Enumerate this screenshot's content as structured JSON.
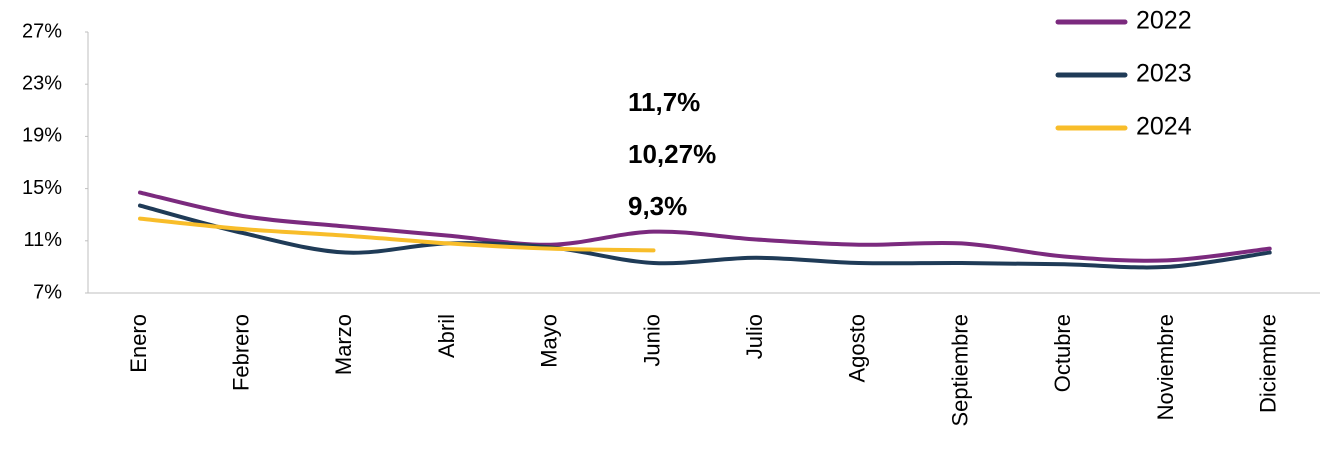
{
  "chart_data": {
    "type": "line",
    "categories": [
      "Enero",
      "Febrero",
      "Marzo",
      "Abril",
      "Mayo",
      "Junio",
      "Julio",
      "Agosto",
      "Septiembre",
      "Octubre",
      "Noviembre",
      "Diciembre"
    ],
    "series": [
      {
        "name": "2022",
        "color": "#7b2a7e",
        "values": [
          14.7,
          12.9,
          12.1,
          11.4,
          10.7,
          11.7,
          11.1,
          10.7,
          10.8,
          9.8,
          9.5,
          10.4
        ]
      },
      {
        "name": "2023",
        "color": "#1f3b57",
        "values": [
          13.7,
          11.6,
          10.1,
          10.8,
          10.5,
          9.3,
          9.7,
          9.3,
          9.3,
          9.2,
          9.0,
          10.1
        ]
      },
      {
        "name": "2024",
        "color": "#f8bd2a",
        "values": [
          12.7,
          11.9,
          11.4,
          10.8,
          10.4,
          10.27,
          null,
          null,
          null,
          null,
          null,
          null
        ]
      }
    ],
    "ylim": [
      7,
      27
    ],
    "yticks": [
      {
        "value": 7,
        "label": "7%"
      },
      {
        "value": 11,
        "label": "11%"
      },
      {
        "value": 15,
        "label": "15%"
      },
      {
        "value": 19,
        "label": "19%"
      },
      {
        "value": 23,
        "label": "23%"
      },
      {
        "value": 27,
        "label": "27%"
      }
    ],
    "legend": "top-right",
    "annotations": [
      {
        "text": "11,7%",
        "color": "#7b2a7e"
      },
      {
        "text": "10,27%",
        "color": "#f8bd2a"
      },
      {
        "text": "9,3%",
        "color": "#44546a"
      }
    ]
  }
}
